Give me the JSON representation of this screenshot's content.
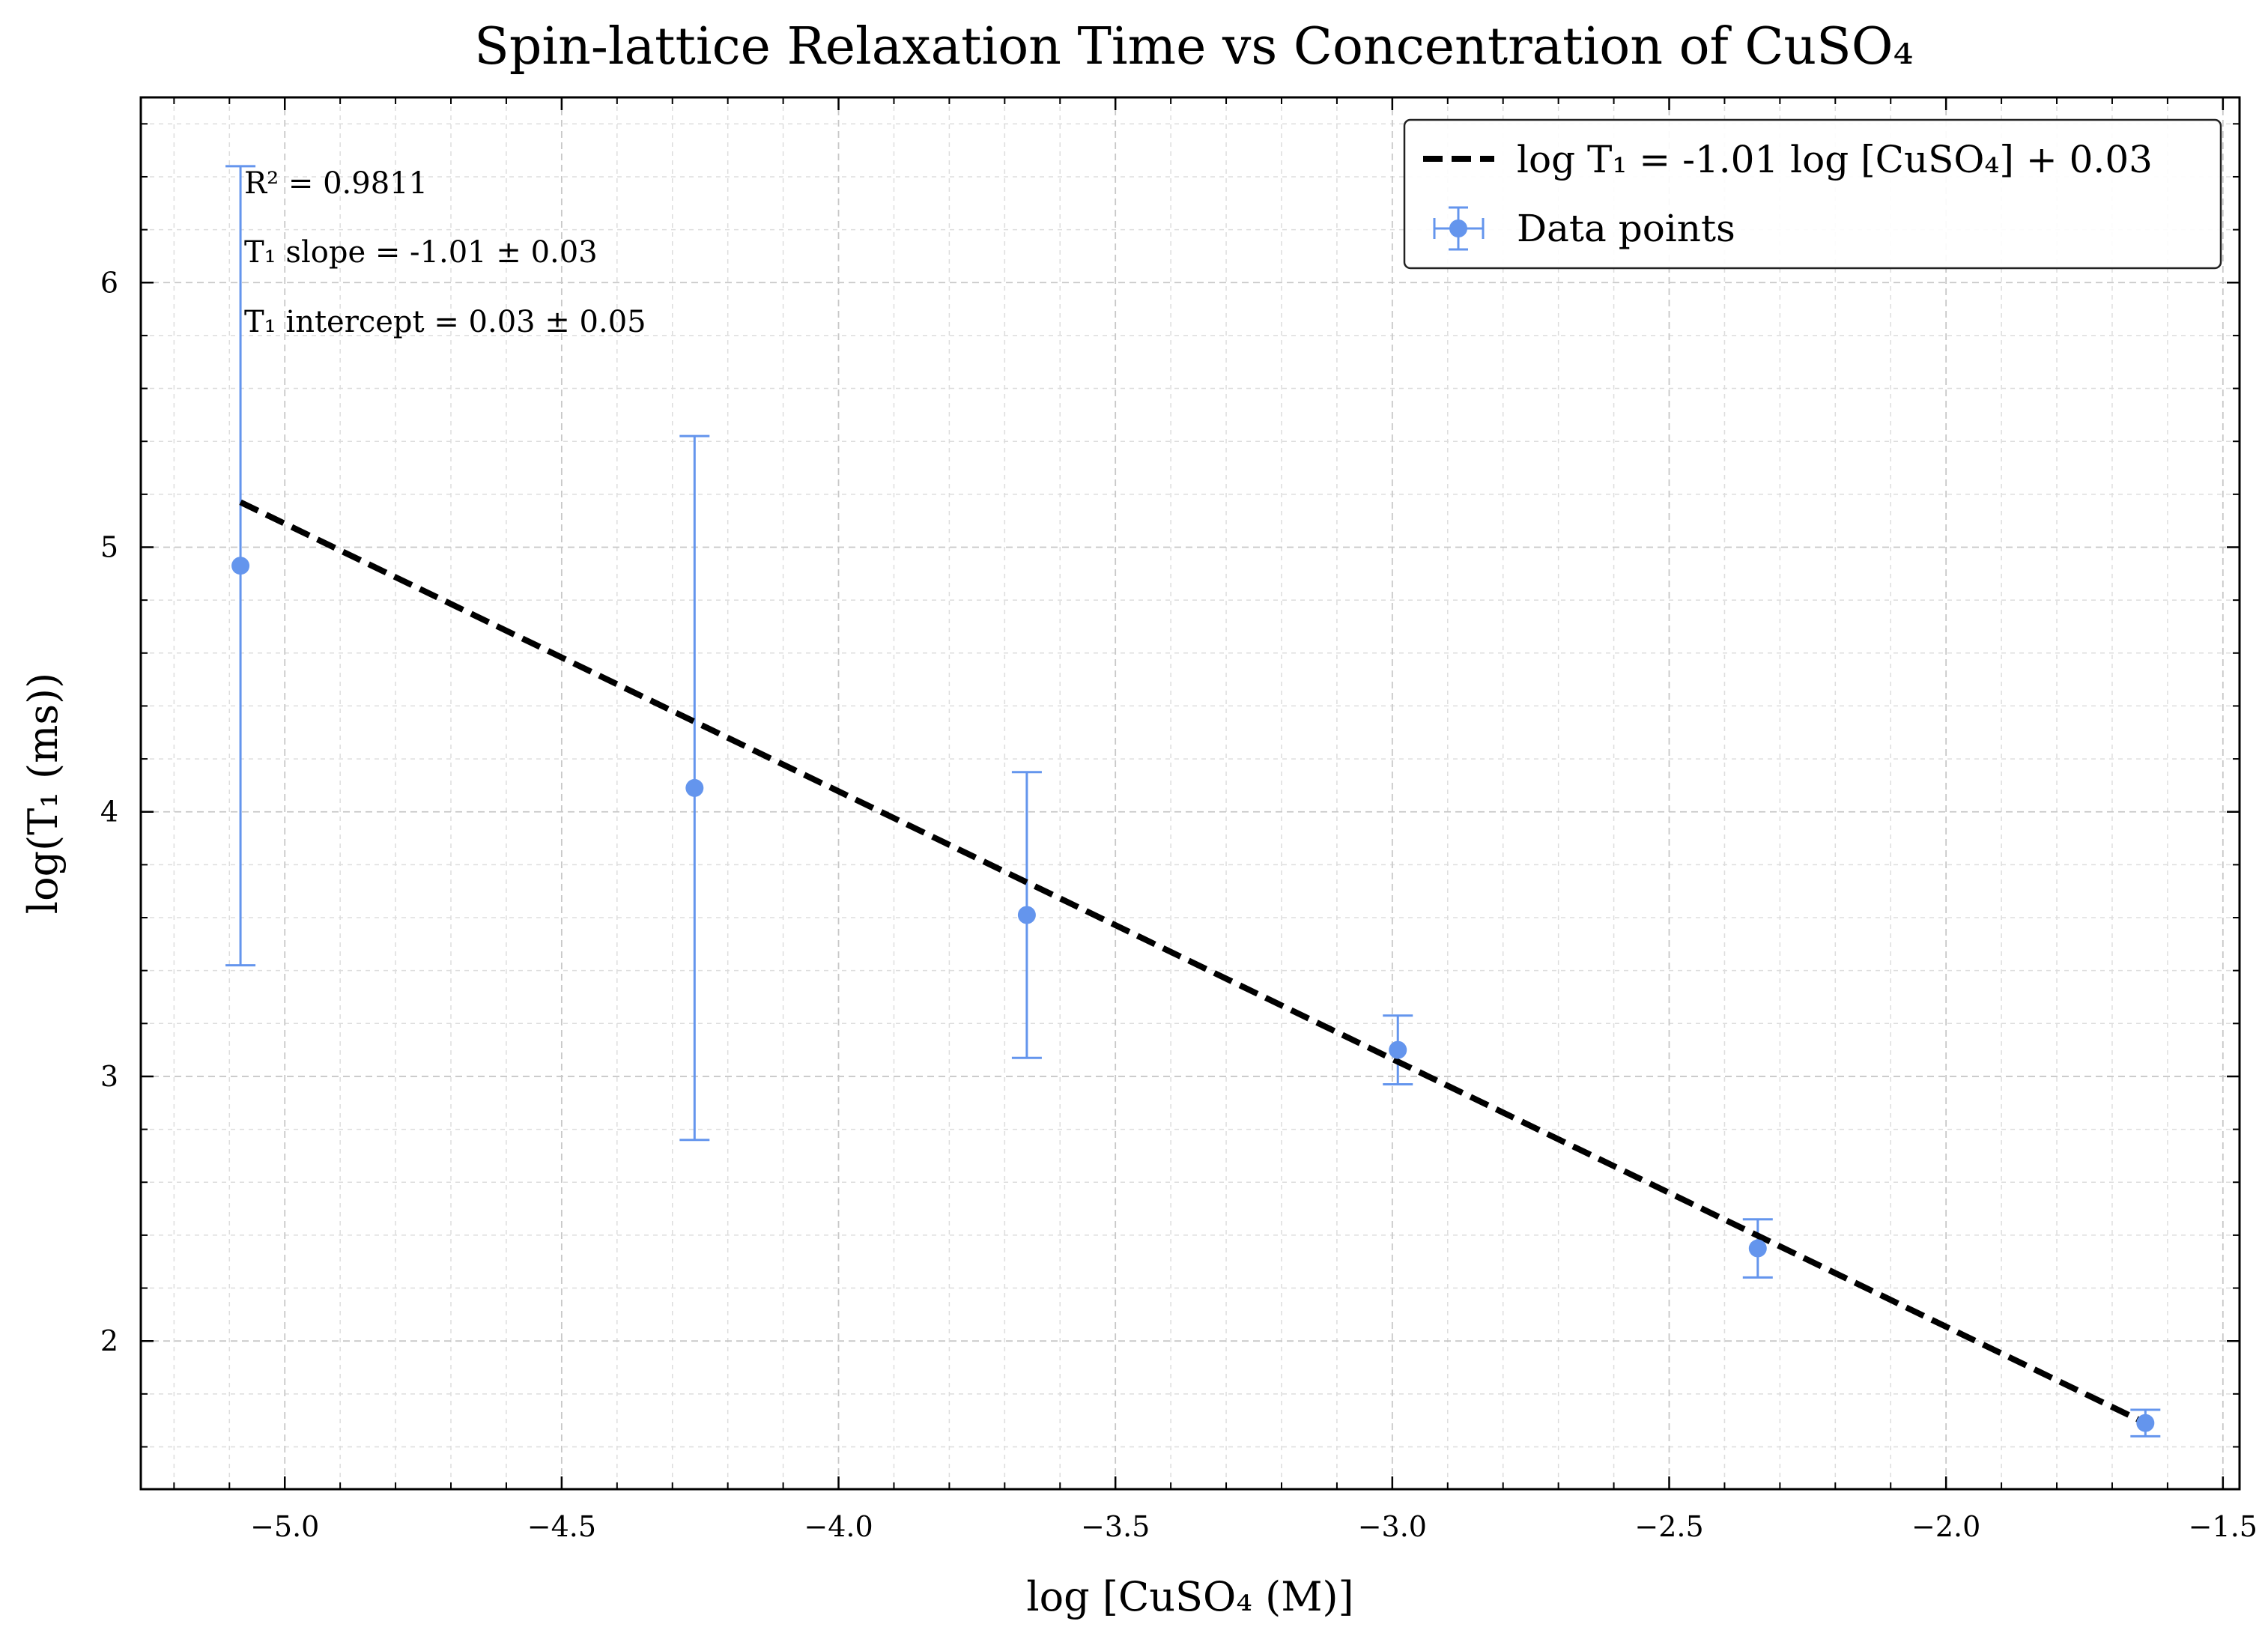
{
  "chart_data": {
    "type": "scatter",
    "title": "Spin-lattice Relaxation Time vs Concentration of CuSO₄",
    "xlabel": "log [CuSO₄ (M)]",
    "ylabel": "log(T₁ (ms))",
    "xlim": [
      -5.26,
      -1.47
    ],
    "ylim": [
      1.44,
      6.7
    ],
    "xticks": [
      -5.0,
      -4.5,
      -4.0,
      -3.5,
      -3.0,
      -2.5,
      -2.0,
      -1.5
    ],
    "xtick_labels": [
      "−5.0",
      "−4.5",
      "−4.0",
      "−3.5",
      "−3.0",
      "−2.5",
      "−2.0",
      "−1.5"
    ],
    "yticks": [
      2,
      3,
      4,
      5,
      6
    ],
    "ytick_labels": [
      "2",
      "3",
      "4",
      "5",
      "6"
    ],
    "grid": true,
    "legend_position": "top-right",
    "series": [
      {
        "name": "log T₁ = -1.01 log [CuSO₄] + 0.03",
        "kind": "fit-line",
        "style": "dashed",
        "color": "#000000",
        "x": [
          -5.08,
          -1.64
        ],
        "y": [
          5.17,
          1.69
        ]
      },
      {
        "name": "Data points",
        "kind": "errorbar",
        "color": "#6495ED",
        "x": [
          -5.08,
          -4.26,
          -3.66,
          -2.99,
          -2.34,
          -1.64
        ],
        "y": [
          4.93,
          4.09,
          3.61,
          3.1,
          2.35,
          1.69
        ],
        "yerr": [
          1.51,
          1.33,
          0.54,
          0.13,
          0.11,
          0.05
        ]
      }
    ],
    "annotations": [
      "R² = 0.9811",
      "T₁ slope = -1.01 ± 0.03",
      "T₁ intercept = 0.03 ± 0.05"
    ]
  }
}
